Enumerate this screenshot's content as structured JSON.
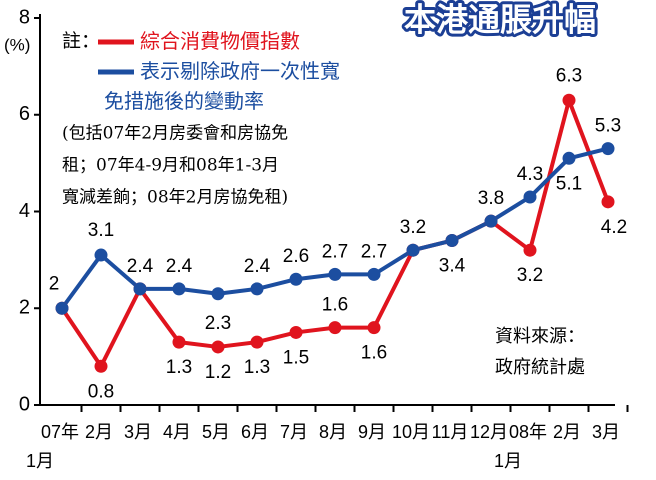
{
  "chart_data": {
    "type": "line",
    "title": "本港通脹升幅",
    "y_unit_label": "(%)",
    "legend_note_label": "註：",
    "note_lines": [
      "(包括07年2月房委會和房協免",
      "租；07年4-9月和08年1-3月",
      "寬減差餉；08年2月房協免租)"
    ],
    "source_lines": [
      "資料來源：",
      "政府統計處"
    ],
    "categories": [
      "07年",
      "2月",
      "3月",
      "4月",
      "5月",
      "6月",
      "7月",
      "8月",
      "9月",
      "10月",
      "11月",
      "12月",
      "08年",
      "2月",
      "3月"
    ],
    "category_sublabels": [
      "1月",
      null,
      null,
      null,
      null,
      null,
      null,
      null,
      null,
      null,
      null,
      null,
      "1月",
      null,
      null
    ],
    "ylim": [
      0,
      8
    ],
    "yticks": [
      0,
      2,
      4,
      6,
      8
    ],
    "series": [
      {
        "name": "綜合消費物價指數",
        "color": "#e0141e",
        "values": [
          2,
          0.8,
          2.4,
          1.3,
          1.2,
          1.3,
          1.5,
          1.6,
          1.6,
          3.2,
          3.4,
          3.8,
          3.2,
          6.3,
          4.2
        ],
        "value_labels": [
          null,
          "0.8",
          null,
          "1.3",
          "1.2",
          "1.3",
          "1.5",
          "1.6",
          "1.6",
          null,
          null,
          null,
          "3.2",
          "6.3",
          "4.2"
        ]
      },
      {
        "name": "表示剔除政府一次性寬免措施後的變動率",
        "color": "#1c4ea0",
        "values": [
          2,
          3.1,
          2.4,
          2.4,
          2.3,
          2.4,
          2.6,
          2.7,
          2.7,
          3.2,
          3.4,
          3.8,
          4.3,
          5.1,
          5.3
        ],
        "value_labels": [
          "2",
          "3.1",
          "2.4",
          "2.4",
          "2.3",
          "2.4",
          "2.6",
          "2.7",
          "2.7",
          "3.2",
          "3.4",
          "3.8",
          "4.3",
          "5.1",
          "5.3"
        ]
      }
    ]
  }
}
